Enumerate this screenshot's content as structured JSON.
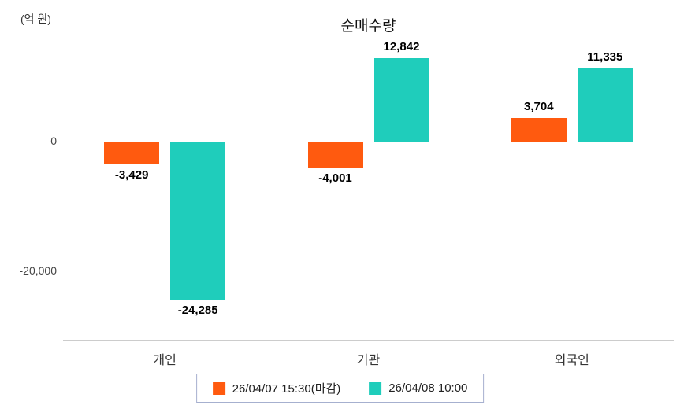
{
  "chart_data": {
    "type": "bar",
    "title": "순매수량",
    "unit_label": "(억 원)",
    "categories": [
      "개인",
      "기관",
      "외국인"
    ],
    "series": [
      {
        "name": "26/04/07 15:30(마감)",
        "color": "#ff5a0f",
        "values": [
          -3429,
          -4001,
          3704
        ]
      },
      {
        "name": "26/04/08 10:00",
        "color": "#1fcdbb",
        "values": [
          -24285,
          12842,
          11335
        ]
      }
    ],
    "y_ticks": [
      {
        "value": 0,
        "label": "0"
      },
      {
        "value": -20000,
        "label": "-20,000"
      }
    ],
    "ylim": [
      -30500,
      15800
    ],
    "grid": false,
    "legend_position": "bottom"
  }
}
